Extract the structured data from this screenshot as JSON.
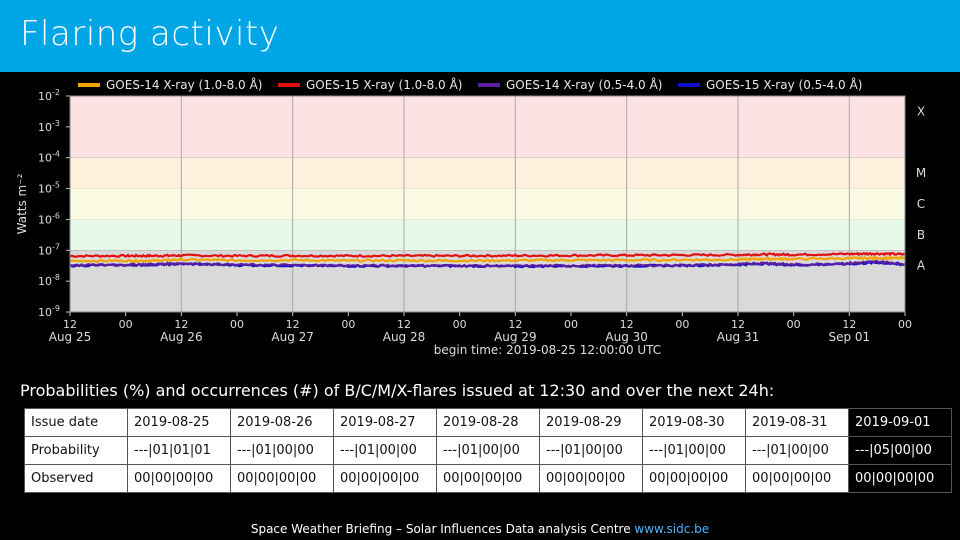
{
  "title": "Flaring activity",
  "colors": {
    "header": "#00a6e6",
    "goes14_long": "#f4a300",
    "goes15_long": "#e01010",
    "goes14_short": "#5a1fa0",
    "goes15_short": "#1010c8",
    "band_X": "#fde2e4",
    "band_M": "#fdf0dc",
    "band_C": "#fbfbe3",
    "band_B": "#e6f8e6",
    "band_A": "#d9d9d9"
  },
  "chart_data": {
    "type": "line",
    "ylabel": "Watts m^-2",
    "yscale": "log",
    "ylim": [
      1e-09,
      0.01
    ],
    "y_ticks": [
      "10^-9",
      "10^-8",
      "10^-7",
      "10^-6",
      "10^-5",
      "10^-4",
      "10^-3",
      "10^-2"
    ],
    "x_ticks_top": [
      "12",
      "00",
      "12",
      "00",
      "12",
      "00",
      "12",
      "00",
      "12",
      "00",
      "12",
      "00",
      "12",
      "00",
      "12",
      "00"
    ],
    "x_ticks_date": [
      "Aug 25",
      "Aug 26",
      "Aug 27",
      "Aug 28",
      "Aug 29",
      "Aug 30",
      "Aug 31",
      "Sep 01"
    ],
    "x_caption": "begin time: 2019-08-25 12:00:00 UTC",
    "x_range_hours": [
      0,
      180
    ],
    "flare_classes": [
      {
        "label": "X",
        "from_exp": -4,
        "to_exp": -2
      },
      {
        "label": "M",
        "from_exp": -5,
        "to_exp": -4
      },
      {
        "label": "C",
        "from_exp": -6,
        "to_exp": -5
      },
      {
        "label": "B",
        "from_exp": -7,
        "to_exp": -6
      },
      {
        "label": "A",
        "from_exp": -9,
        "to_exp": -7
      }
    ],
    "series": [
      {
        "name": "GOES-14 X-ray (1.0-8.0 Å)",
        "color_key": "goes14_long",
        "x": [
          0,
          12,
          18,
          24,
          36,
          48,
          60,
          72,
          84,
          96,
          108,
          120,
          132,
          144,
          150,
          156,
          168,
          174,
          180
        ],
        "y": [
          4.5e-08,
          4.6e-08,
          4.6e-08,
          5e-08,
          4.7e-08,
          4.8e-08,
          4.6e-08,
          4.7e-08,
          4.6e-08,
          4.7e-08,
          4.8e-08,
          4.8e-08,
          4.9e-08,
          5e-08,
          5.3e-08,
          5.2e-08,
          5.5e-08,
          5.6e-08,
          5.5e-08
        ]
      },
      {
        "name": "GOES-15 X-ray (1.0-8.0 Å)",
        "color_key": "goes15_long",
        "x": [
          0,
          12,
          18,
          24,
          36,
          48,
          60,
          72,
          84,
          96,
          108,
          120,
          132,
          144,
          150,
          156,
          168,
          174,
          180
        ],
        "y": [
          6.5e-08,
          6.6e-08,
          6.6e-08,
          6.8e-08,
          6.6e-08,
          6.7e-08,
          6.6e-08,
          6.6e-08,
          6.6e-08,
          6.7e-08,
          6.8e-08,
          6.9e-08,
          7e-08,
          7.1e-08,
          7.4e-08,
          7.2e-08,
          7.6e-08,
          7.8e-08,
          7.4e-08
        ]
      },
      {
        "name": "GOES-14 X-ray (0.5-4.0 Å)",
        "color_key": "goes14_short",
        "x": [
          0,
          12,
          18,
          24,
          36,
          48,
          60,
          72,
          84,
          96,
          108,
          120,
          132,
          144,
          150,
          156,
          168,
          174,
          180
        ],
        "y": [
          3.3e-08,
          3.4e-08,
          3.5e-08,
          3.8e-08,
          3.4e-08,
          3.3e-08,
          3.2e-08,
          3.2e-08,
          3.2e-08,
          3.1e-08,
          3.2e-08,
          3.2e-08,
          3.3e-08,
          3.5e-08,
          3.9e-08,
          3.4e-08,
          3.8e-08,
          4.3e-08,
          3.6e-08
        ]
      },
      {
        "name": "GOES-15 X-ray (0.5-4.0 Å)",
        "color_key": "goes15_short",
        "x": [
          0,
          12,
          18,
          24,
          36,
          48,
          60,
          72,
          84,
          96,
          108,
          120,
          132,
          144,
          150,
          156,
          168,
          174,
          180
        ],
        "y": [
          3.2e-08,
          3.3e-08,
          3.4e-08,
          3.6e-08,
          3.3e-08,
          3.2e-08,
          3.1e-08,
          3.1e-08,
          3.1e-08,
          3e-08,
          3.1e-08,
          3.1e-08,
          3.2e-08,
          3.4e-08,
          3.7e-08,
          3.3e-08,
          3.6e-08,
          4e-08,
          3.4e-08
        ]
      }
    ]
  },
  "prob_caption": "Probabilities (%) and occurrences (#) of B/C/M/X-flares issued at 12:30 and over the next 24h:",
  "table": {
    "rows": [
      {
        "label": "Issue date",
        "cells": [
          "2019-08-25",
          "2019-08-26",
          "2019-08-27",
          "2019-08-28",
          "2019-08-29",
          "2019-08-30",
          "2019-08-31",
          "2019-09-01"
        ]
      },
      {
        "label": "Probability",
        "cells": [
          "---|01|01|01",
          "---|01|00|00",
          "---|01|00|00",
          "---|01|00|00",
          "---|01|00|00",
          "---|01|00|00",
          "---|01|00|00",
          "---|05|00|00"
        ]
      },
      {
        "label": "Observed",
        "cells": [
          "00|00|00|00",
          "00|00|00|00",
          "00|00|00|00",
          "00|00|00|00",
          "00|00|00|00",
          "00|00|00|00",
          "00|00|00|00",
          "00|00|00|00"
        ]
      }
    ]
  },
  "footer": {
    "text": "Space Weather Briefing – Solar Influences Data analysis Centre ",
    "link": "www.sidc.be"
  }
}
